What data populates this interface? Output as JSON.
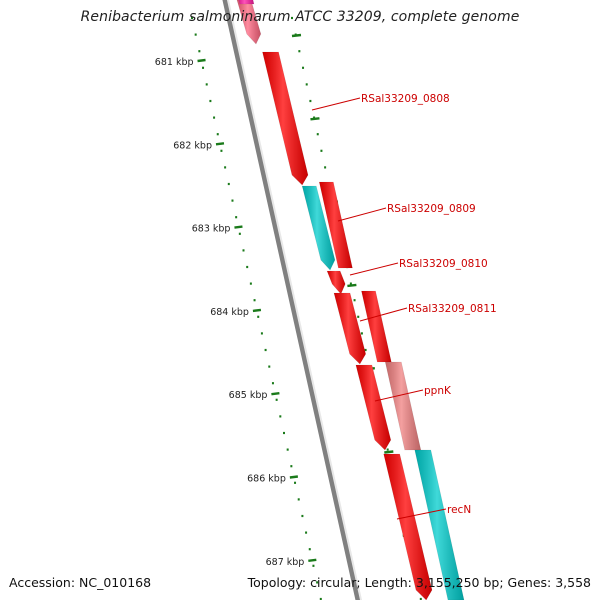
{
  "title": "Renibacterium salmoninarum ATCC 33209, complete genome",
  "footer": {
    "accession": "Accession: NC_010168",
    "topology": "Topology: circular",
    "length": "Length: 3,155,250 bp",
    "genes": "Genes: 3,558"
  },
  "colors": {
    "backbone": "#808080",
    "tick": "#1a7a1a",
    "label_line": "#cc0000",
    "label_text": "#cc0000",
    "scale_text": "#222222"
  },
  "scale_ticks": [
    "681 kbp",
    "682 kbp",
    "683 kbp",
    "684 kbp",
    "685 kbp",
    "686 kbp",
    "687 kbp"
  ],
  "genes": [
    {
      "label": "",
      "color": "#ff6680"
    },
    {
      "label": "RSal33209_0808",
      "color": "#ff0000"
    },
    {
      "label": "",
      "color": "#ff0000"
    },
    {
      "label": "RSal33209_0809",
      "color": "#00cccc"
    },
    {
      "label": "",
      "color": "#ff0000"
    },
    {
      "label": "RSal33209_0810",
      "color": "#ff0000"
    },
    {
      "label": "",
      "color": "#ff0000"
    },
    {
      "label": "RSal33209_0811",
      "color": "#f08080"
    },
    {
      "label": "",
      "color": "#ff0000"
    },
    {
      "label": "ppnK",
      "color": "#00cccc"
    },
    {
      "label": "",
      "color": "#ff0000"
    },
    {
      "label": "recN",
      "color": "#ff1aa3"
    }
  ]
}
